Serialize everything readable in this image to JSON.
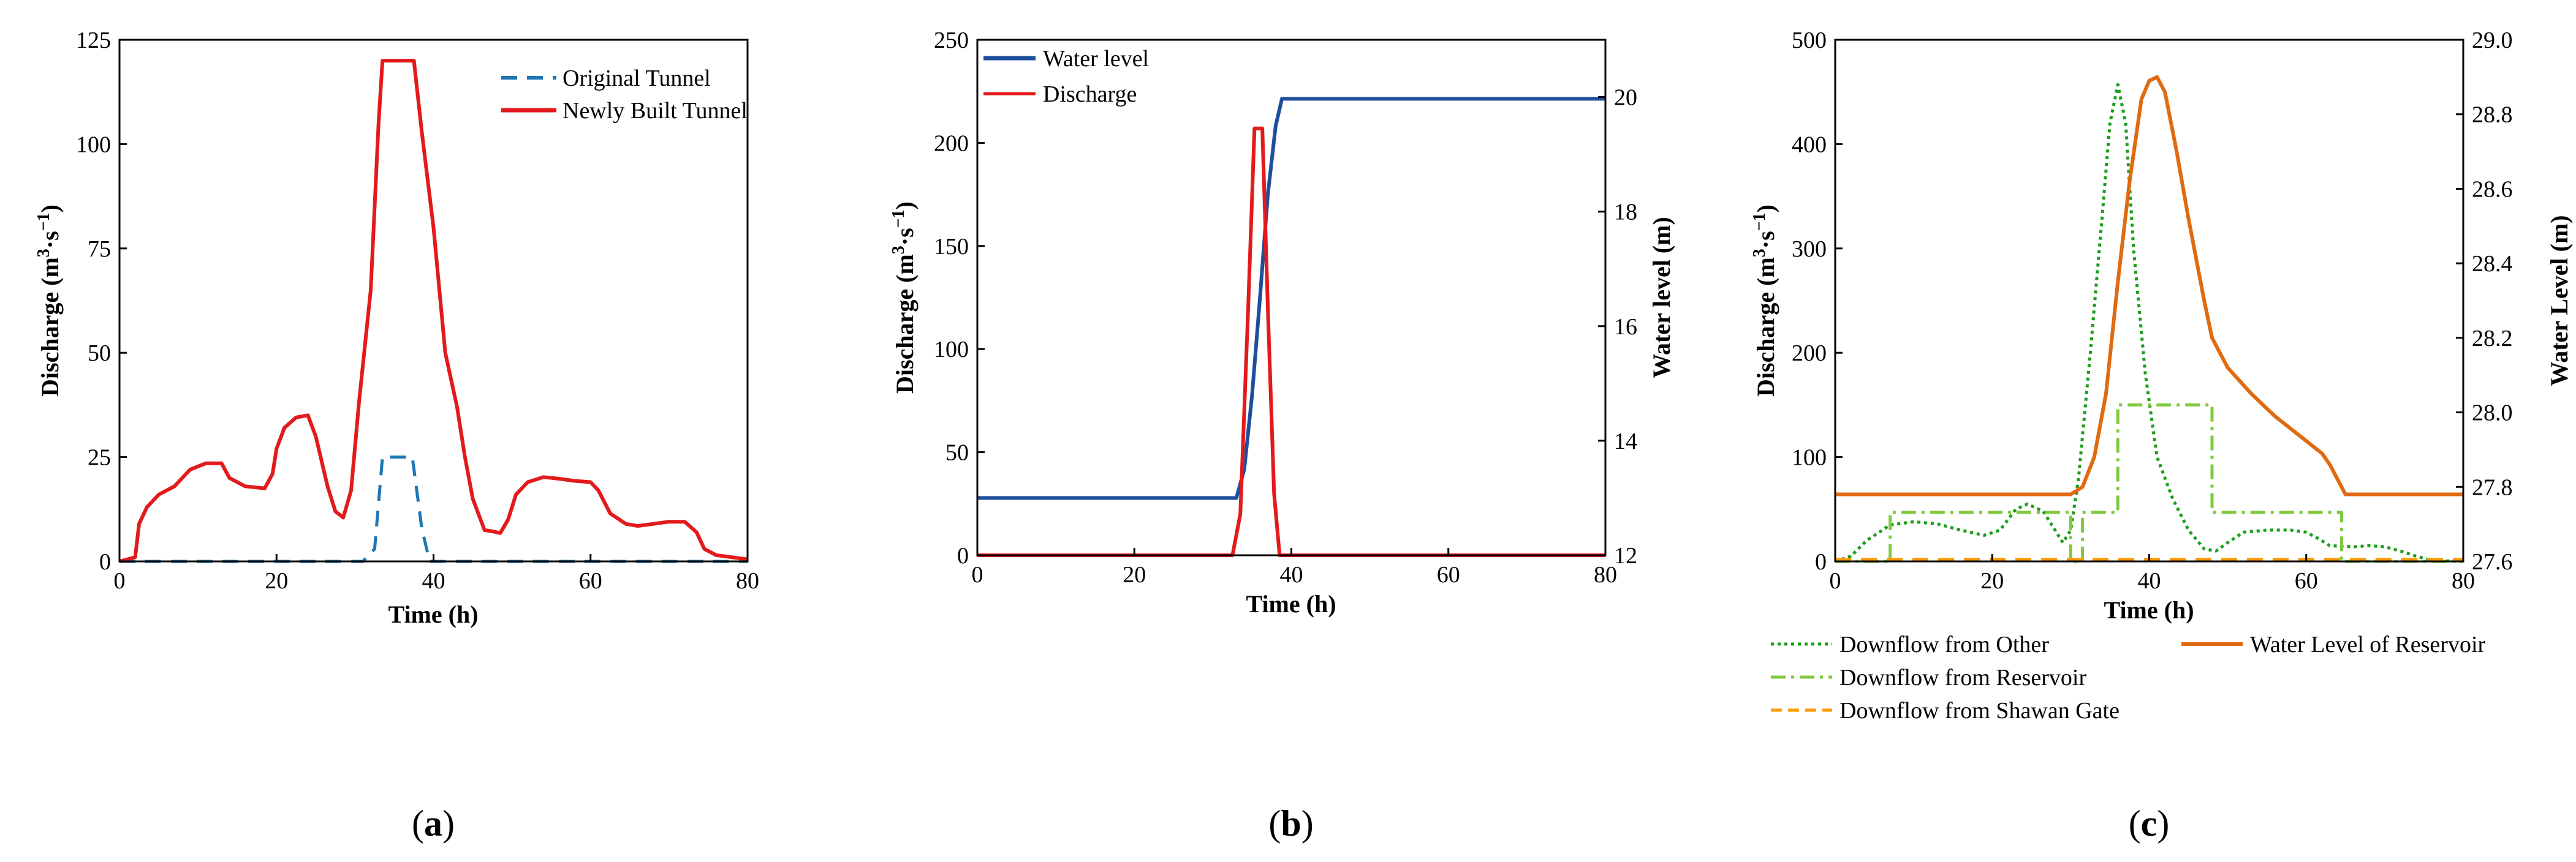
{
  "chart_data": [
    {
      "type": "line",
      "panel": "a",
      "panel_label": {
        "open": "(",
        "letter": "a",
        "close": ")"
      },
      "title": "",
      "xlabel": "Time (h)",
      "ylabel": {
        "prefix": "Discharge (m",
        "sup1": "3",
        "mid": "·s",
        "sup2": "−1",
        "suffix": ")"
      },
      "xlim": [
        0,
        80
      ],
      "ylim": [
        0,
        125
      ],
      "xticks": [
        0,
        20,
        40,
        60,
        80
      ],
      "yticks": [
        0,
        25,
        50,
        75,
        100,
        125
      ],
      "legend_position": "top-right",
      "series": [
        {
          "name": "Original Tunnel",
          "color": "#1f77b4",
          "style": "dashed",
          "points": [
            [
              0,
              0
            ],
            [
              31,
              0
            ],
            [
              32.5,
              3
            ],
            [
              33.5,
              25
            ],
            [
              37.3,
              25
            ],
            [
              38.5,
              8
            ],
            [
              39.5,
              0
            ],
            [
              80,
              0
            ]
          ]
        },
        {
          "name": "Newly Built Tunnel",
          "color": "#e31a1c",
          "style": "solid",
          "points": [
            [
              0,
              0
            ],
            [
              1,
              0.5
            ],
            [
              2,
              1
            ],
            [
              2.5,
              9
            ],
            [
              3.5,
              13
            ],
            [
              5,
              16
            ],
            [
              7,
              18
            ],
            [
              9,
              22
            ],
            [
              11,
              23.5
            ],
            [
              13,
              23.5
            ],
            [
              14,
              20
            ],
            [
              16,
              18
            ],
            [
              18.5,
              17.5
            ],
            [
              19.5,
              21
            ],
            [
              20,
              27
            ],
            [
              21,
              32
            ],
            [
              22.5,
              34.5
            ],
            [
              24,
              35
            ],
            [
              25,
              30
            ],
            [
              26.5,
              18
            ],
            [
              27.5,
              12
            ],
            [
              28.5,
              10.5
            ],
            [
              29.5,
              17
            ],
            [
              30.5,
              38
            ],
            [
              32,
              65
            ],
            [
              33,
              105
            ],
            [
              33.5,
              120
            ],
            [
              37.5,
              120
            ],
            [
              38.5,
              103
            ],
            [
              40,
              80
            ],
            [
              41.5,
              50
            ],
            [
              43,
              37
            ],
            [
              44,
              25
            ],
            [
              45,
              15
            ],
            [
              46.5,
              7.5
            ],
            [
              47.5,
              7.2
            ],
            [
              48.5,
              6.8
            ],
            [
              49.5,
              10
            ],
            [
              50.5,
              16
            ],
            [
              52,
              19
            ],
            [
              54,
              20.2
            ],
            [
              56,
              19.8
            ],
            [
              58,
              19.3
            ],
            [
              60,
              19
            ],
            [
              61,
              17
            ],
            [
              62.5,
              11.5
            ],
            [
              64.5,
              9
            ],
            [
              66,
              8.5
            ],
            [
              68,
              9
            ],
            [
              70,
              9.5
            ],
            [
              72,
              9.5
            ],
            [
              73.5,
              7
            ],
            [
              74.5,
              3
            ],
            [
              76,
              1.5
            ],
            [
              80,
              0.5
            ]
          ]
        }
      ]
    },
    {
      "type": "line",
      "panel": "b",
      "panel_label": {
        "open": "(",
        "letter": "b",
        "close": ")"
      },
      "title": "",
      "xlabel": "Time (h)",
      "ylabel": {
        "prefix": "Discharge (m",
        "sup1": "3",
        "mid": "·s",
        "sup2": "−1",
        "suffix": ")"
      },
      "y2label": "Water level (m)",
      "xlim": [
        0,
        80
      ],
      "ylim": [
        0,
        250
      ],
      "y2lim": [
        12,
        21
      ],
      "xticks": [
        0,
        20,
        40,
        60,
        80
      ],
      "yticks": [
        0,
        50,
        100,
        150,
        200,
        250
      ],
      "y2ticks": [
        12,
        14,
        16,
        18,
        20
      ],
      "legend_position": "top-left",
      "series": [
        {
          "name": "Water level",
          "axis": "right",
          "color": "#1f4e9c",
          "style": "solid",
          "points": [
            [
              0,
              13
            ],
            [
              33,
              13
            ],
            [
              34,
              13.5
            ],
            [
              35,
              14.8
            ],
            [
              36,
              16.5
            ],
            [
              37,
              18.3
            ],
            [
              38,
              19.5
            ],
            [
              38.8,
              19.97
            ],
            [
              80,
              19.97
            ]
          ]
        },
        {
          "name": "Discharge",
          "axis": "left",
          "color": "#e31a1c",
          "style": "solid",
          "points": [
            [
              0,
              0
            ],
            [
              32.5,
              0
            ],
            [
              33.5,
              20
            ],
            [
              34.5,
              120
            ],
            [
              35.3,
              207
            ],
            [
              36.3,
              207
            ],
            [
              37,
              120
            ],
            [
              37.8,
              30
            ],
            [
              38.5,
              0
            ],
            [
              80,
              0
            ]
          ]
        }
      ]
    },
    {
      "type": "line",
      "panel": "c",
      "panel_label": {
        "open": "(",
        "letter": "c",
        "close": ")"
      },
      "title": "",
      "xlabel": "Time (h)",
      "ylabel": {
        "prefix": "Discharge (m",
        "sup1": "3",
        "mid": "·s",
        "sup2": "−1",
        "suffix": ")"
      },
      "y2label": "Water Level (m)",
      "xlim": [
        0,
        80
      ],
      "ylim": [
        0,
        500
      ],
      "y2lim": [
        27.6,
        29.0
      ],
      "xticks": [
        0,
        20,
        40,
        60,
        80
      ],
      "yticks": [
        0,
        100,
        200,
        300,
        400,
        500
      ],
      "y2ticks": [
        "27.6",
        "27.8",
        "28.0",
        "28.2",
        "28.4",
        "28.6",
        "28.8",
        "29.0"
      ],
      "legend_position": "bottom",
      "series": [
        {
          "name": "Downflow from Other",
          "axis": "left",
          "color": "#1a9e1a",
          "style": "dotted",
          "points": [
            [
              0,
              0
            ],
            [
              2,
              5
            ],
            [
              4,
              20
            ],
            [
              7,
              35
            ],
            [
              10,
              38
            ],
            [
              13,
              36
            ],
            [
              16,
              30
            ],
            [
              19,
              25
            ],
            [
              21,
              30
            ],
            [
              23,
              50
            ],
            [
              24.5,
              55
            ],
            [
              26.5,
              48
            ],
            [
              28,
              30
            ],
            [
              29,
              18
            ],
            [
              30,
              30
            ],
            [
              31,
              80
            ],
            [
              32.5,
              200
            ],
            [
              34,
              330
            ],
            [
              35,
              420
            ],
            [
              36,
              457
            ],
            [
              37,
              420
            ],
            [
              38,
              300
            ],
            [
              39.5,
              180
            ],
            [
              41,
              100
            ],
            [
              43,
              60
            ],
            [
              45,
              30
            ],
            [
              47,
              12
            ],
            [
              48.5,
              10
            ],
            [
              50,
              18
            ],
            [
              52,
              28
            ],
            [
              55,
              30
            ],
            [
              58,
              30
            ],
            [
              60,
              28
            ],
            [
              61.5,
              22
            ],
            [
              63,
              15
            ],
            [
              66,
              14
            ],
            [
              68,
              15
            ],
            [
              70,
              14
            ],
            [
              72,
              10
            ],
            [
              74,
              5
            ],
            [
              76,
              1
            ],
            [
              80,
              0
            ]
          ]
        },
        {
          "name": "Downflow from  Reservoir",
          "axis": "left",
          "color": "#7fc93f",
          "style": "dashdot",
          "points": [
            [
              0,
              0
            ],
            [
              7,
              0
            ],
            [
              7,
              47
            ],
            [
              30,
              47
            ],
            [
              30,
              0
            ],
            [
              31.5,
              0
            ],
            [
              31.5,
              47
            ],
            [
              36,
              47
            ],
            [
              36,
              150
            ],
            [
              48,
              150
            ],
            [
              48,
              47
            ],
            [
              64.5,
              47
            ],
            [
              64.5,
              0
            ],
            [
              80,
              0
            ]
          ]
        },
        {
          "name": "Downflow from Shawan Gate",
          "axis": "left",
          "color": "#ff9a00",
          "style": "dashed",
          "points": [
            [
              0,
              2
            ],
            [
              80,
              2
            ]
          ]
        },
        {
          "name": "Water Level of Reservoir",
          "axis": "right",
          "color": "#e06a10",
          "style": "solid",
          "points": [
            [
              0,
              27.78
            ],
            [
              30,
              27.78
            ],
            [
              31.5,
              27.8
            ],
            [
              33,
              27.88
            ],
            [
              34.5,
              28.05
            ],
            [
              36,
              28.35
            ],
            [
              37.5,
              28.62
            ],
            [
              39,
              28.84
            ],
            [
              40,
              28.89
            ],
            [
              41,
              28.9
            ],
            [
              42,
              28.86
            ],
            [
              43.5,
              28.7
            ],
            [
              45,
              28.52
            ],
            [
              47,
              28.3
            ],
            [
              48,
              28.2
            ],
            [
              50,
              28.12
            ],
            [
              53,
              28.05
            ],
            [
              56,
              27.99
            ],
            [
              59,
              27.94
            ],
            [
              62,
              27.89
            ],
            [
              63,
              27.86
            ],
            [
              64.5,
              27.8
            ],
            [
              65,
              27.78
            ],
            [
              80,
              27.78
            ]
          ]
        }
      ]
    }
  ]
}
